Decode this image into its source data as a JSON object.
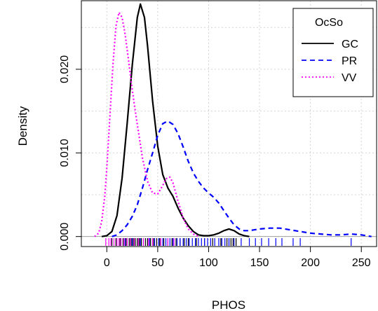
{
  "chart_data": {
    "type": "line",
    "subtype": "kernel-density",
    "title": "",
    "xlabel": "PHOS",
    "ylabel": "Density",
    "xlim": [
      -25,
      265
    ],
    "ylim": [
      -0.0012,
      0.0282
    ],
    "xticks": [
      0,
      50,
      100,
      150,
      200,
      250
    ],
    "yticks": [
      0.0,
      0.01,
      0.02
    ],
    "xtick_labels": [
      "0",
      "50",
      "100",
      "150",
      "200",
      "250"
    ],
    "ytick_labels": [
      "0.000",
      "0.010",
      "0.020"
    ],
    "grid": true,
    "baseline": 0,
    "legend": {
      "title": "OcSo",
      "position": "top-right",
      "entries": [
        "GC",
        "PR",
        "VV"
      ]
    },
    "series": [
      {
        "name": "GC",
        "color": "#000000",
        "dash": "solid",
        "x": [
          -5,
          0,
          5,
          10,
          15,
          20,
          25,
          30,
          33,
          37,
          40,
          45,
          50,
          55,
          60,
          65,
          70,
          75,
          80,
          85,
          90,
          95,
          100,
          105,
          110,
          115,
          120,
          125,
          130,
          135,
          140
        ],
        "y": [
          0.0,
          0.0001,
          0.0006,
          0.0025,
          0.007,
          0.0135,
          0.0205,
          0.0262,
          0.0278,
          0.0262,
          0.0228,
          0.0162,
          0.0108,
          0.0074,
          0.0058,
          0.0048,
          0.0034,
          0.0022,
          0.0013,
          0.0006,
          0.0002,
          0.0001,
          0.0001,
          0.0002,
          0.0004,
          0.0007,
          0.0009,
          0.0007,
          0.0003,
          0.0001,
          0.0
        ]
      },
      {
        "name": "PR",
        "color": "#0000ff",
        "dash": "dashed",
        "x": [
          5,
          10,
          15,
          20,
          25,
          30,
          35,
          40,
          45,
          50,
          55,
          60,
          65,
          70,
          75,
          80,
          85,
          90,
          95,
          100,
          105,
          110,
          115,
          120,
          125,
          130,
          135,
          140,
          145,
          150,
          160,
          170,
          180,
          190,
          200,
          210,
          220,
          230,
          240,
          250,
          260
        ],
        "y": [
          0.0,
          0.0002,
          0.0007,
          0.0014,
          0.0024,
          0.0038,
          0.0058,
          0.008,
          0.01,
          0.0121,
          0.0135,
          0.0138,
          0.0134,
          0.0123,
          0.0107,
          0.009,
          0.0076,
          0.0066,
          0.0058,
          0.0052,
          0.0047,
          0.004,
          0.0031,
          0.0022,
          0.0014,
          0.0009,
          0.0007,
          0.0007,
          0.0008,
          0.0009,
          0.001,
          0.001,
          0.0008,
          0.0006,
          0.0004,
          0.0003,
          0.0002,
          0.0002,
          0.0003,
          0.0002,
          0.0
        ]
      },
      {
        "name": "VV",
        "color": "#ff00ff",
        "dash": "dotted",
        "x": [
          -12,
          -8,
          -5,
          -2,
          0,
          3,
          6,
          9,
          12,
          15,
          18,
          21,
          24,
          27,
          30,
          35,
          40,
          45,
          50,
          55,
          58,
          62,
          65,
          70,
          75,
          80,
          85,
          90
        ],
        "y": [
          0.0,
          0.0004,
          0.0018,
          0.0048,
          0.0082,
          0.0142,
          0.0205,
          0.0252,
          0.0268,
          0.0262,
          0.0242,
          0.0214,
          0.0185,
          0.0158,
          0.0134,
          0.0094,
          0.0066,
          0.0052,
          0.0051,
          0.0061,
          0.0069,
          0.0071,
          0.0064,
          0.0042,
          0.0022,
          0.0009,
          0.0003,
          0.0
        ]
      }
    ],
    "rug": [
      {
        "series": "GC",
        "color": "#000000",
        "x": [
          5,
          9,
          13,
          16,
          19,
          22,
          24,
          26,
          28,
          30,
          32,
          34,
          36,
          38,
          40,
          43,
          46,
          49,
          52,
          56,
          60,
          64,
          68,
          72,
          76,
          80,
          88,
          96,
          104,
          112,
          118,
          120,
          122,
          124,
          127
        ]
      },
      {
        "series": "PR",
        "color": "#0000ff",
        "x": [
          18,
          25,
          33,
          42,
          47,
          51,
          55,
          58,
          62,
          65,
          69,
          72,
          75,
          78,
          81,
          84,
          87,
          90,
          93,
          96,
          99,
          102,
          106,
          110,
          113,
          116,
          120,
          125,
          132,
          140,
          146,
          152,
          159,
          166,
          172,
          183,
          190,
          240
        ]
      },
      {
        "series": "VV",
        "color": "#ff00ff",
        "x": [
          -1,
          2,
          4,
          7,
          10,
          12,
          14,
          17,
          20,
          23,
          27,
          31,
          36,
          41,
          45,
          53,
          60,
          66
        ]
      }
    ]
  }
}
